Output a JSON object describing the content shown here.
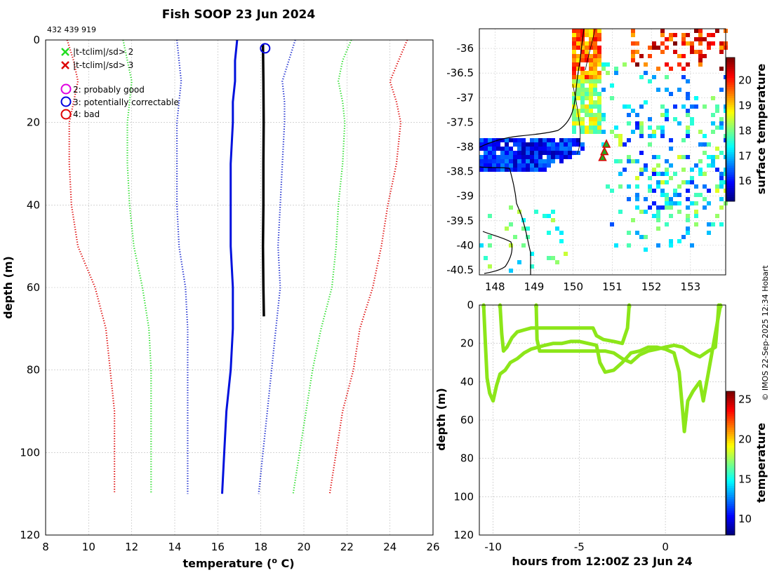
{
  "header": {
    "title": "Fish SOOP 23 Jun 2024",
    "id_label": "432 439 919",
    "watermark": "© IMOS 22-Sep-2025 12:34 Hobart"
  },
  "legend": {
    "clim2": "|t-tclim|/sd> 2",
    "clim3": "|t-tclim|/sd> 3",
    "flag2": "2: probably good",
    "flag3": "3: potentially correctable",
    "flag4": "4: bad"
  },
  "chart_data": [
    {
      "id": "profile",
      "type": "line",
      "xlabel": "temperature (° C)",
      "ylabel": "depth (m)",
      "xlim": [
        8,
        26
      ],
      "ylim": [
        120,
        0
      ],
      "xticks": [
        8,
        10,
        12,
        14,
        16,
        18,
        20,
        22,
        24,
        26
      ],
      "yticks": [
        0,
        20,
        40,
        60,
        80,
        100,
        120
      ],
      "grid": true,
      "series": [
        {
          "name": "clim -3sd",
          "color": "#dd0000",
          "style": "dotted",
          "points": [
            [
              9.0,
              0
            ],
            [
              9.3,
              5
            ],
            [
              9.5,
              10
            ],
            [
              9.3,
              15
            ],
            [
              9.1,
              20
            ],
            [
              9.1,
              30
            ],
            [
              9.2,
              40
            ],
            [
              9.5,
              50
            ],
            [
              10.3,
              60
            ],
            [
              10.8,
              70
            ],
            [
              11.0,
              80
            ],
            [
              11.2,
              90
            ],
            [
              11.2,
              100
            ],
            [
              11.2,
              110
            ]
          ]
        },
        {
          "name": "clim -2sd",
          "color": "#22dd22",
          "style": "dotted",
          "points": [
            [
              11.6,
              0
            ],
            [
              11.8,
              5
            ],
            [
              12.0,
              10
            ],
            [
              11.9,
              15
            ],
            [
              11.8,
              20
            ],
            [
              11.8,
              30
            ],
            [
              11.9,
              40
            ],
            [
              12.1,
              50
            ],
            [
              12.5,
              60
            ],
            [
              12.8,
              70
            ],
            [
              12.9,
              80
            ],
            [
              12.9,
              90
            ],
            [
              12.9,
              100
            ],
            [
              12.9,
              110
            ]
          ]
        },
        {
          "name": "clim -1sd",
          "color": "#1122cc",
          "style": "dotted",
          "points": [
            [
              14.1,
              0
            ],
            [
              14.2,
              5
            ],
            [
              14.3,
              10
            ],
            [
              14.2,
              15
            ],
            [
              14.1,
              20
            ],
            [
              14.1,
              30
            ],
            [
              14.1,
              40
            ],
            [
              14.2,
              50
            ],
            [
              14.5,
              60
            ],
            [
              14.6,
              70
            ],
            [
              14.6,
              80
            ],
            [
              14.6,
              90
            ],
            [
              14.6,
              100
            ],
            [
              14.6,
              110
            ]
          ]
        },
        {
          "name": "clim mean",
          "color": "#0011dd",
          "style": "solid",
          "points": [
            [
              16.9,
              0
            ],
            [
              16.8,
              5
            ],
            [
              16.8,
              10
            ],
            [
              16.7,
              15
            ],
            [
              16.7,
              20
            ],
            [
              16.6,
              30
            ],
            [
              16.6,
              40
            ],
            [
              16.6,
              50
            ],
            [
              16.7,
              60
            ],
            [
              16.7,
              70
            ],
            [
              16.6,
              80
            ],
            [
              16.4,
              90
            ],
            [
              16.3,
              100
            ],
            [
              16.2,
              110
            ]
          ]
        },
        {
          "name": "clim +1sd",
          "color": "#1122cc",
          "style": "dotted",
          "points": [
            [
              19.6,
              0
            ],
            [
              19.3,
              5
            ],
            [
              19.0,
              10
            ],
            [
              19.1,
              15
            ],
            [
              19.1,
              20
            ],
            [
              19.0,
              30
            ],
            [
              18.9,
              40
            ],
            [
              18.8,
              50
            ],
            [
              18.9,
              60
            ],
            [
              18.7,
              70
            ],
            [
              18.5,
              80
            ],
            [
              18.3,
              90
            ],
            [
              18.1,
              100
            ],
            [
              17.9,
              110
            ]
          ]
        },
        {
          "name": "clim +2sd",
          "color": "#22dd22",
          "style": "dotted",
          "points": [
            [
              22.2,
              0
            ],
            [
              21.8,
              5
            ],
            [
              21.6,
              10
            ],
            [
              21.8,
              15
            ],
            [
              21.9,
              20
            ],
            [
              21.8,
              30
            ],
            [
              21.6,
              40
            ],
            [
              21.5,
              50
            ],
            [
              21.3,
              60
            ],
            [
              20.8,
              70
            ],
            [
              20.4,
              80
            ],
            [
              20.1,
              90
            ],
            [
              19.8,
              100
            ],
            [
              19.5,
              110
            ]
          ]
        },
        {
          "name": "clim +3sd",
          "color": "#dd0000",
          "style": "dotted",
          "points": [
            [
              24.8,
              0
            ],
            [
              24.4,
              5
            ],
            [
              24.0,
              10
            ],
            [
              24.3,
              15
            ],
            [
              24.5,
              20
            ],
            [
              24.3,
              30
            ],
            [
              23.9,
              40
            ],
            [
              23.6,
              50
            ],
            [
              23.2,
              60
            ],
            [
              22.6,
              70
            ],
            [
              22.3,
              80
            ],
            [
              21.8,
              90
            ],
            [
              21.5,
              100
            ],
            [
              21.2,
              110
            ]
          ]
        },
        {
          "name": "observed",
          "color": "#000000",
          "style": "solid",
          "points": [
            [
              18.1,
              1
            ],
            [
              18.12,
              10
            ],
            [
              18.13,
              20
            ],
            [
              18.12,
              30
            ],
            [
              18.12,
              40
            ],
            [
              18.1,
              50
            ],
            [
              18.12,
              60
            ],
            [
              18.14,
              67
            ]
          ]
        }
      ],
      "flag_marker": {
        "temperature": 18.2,
        "depth": 1,
        "flag": 3
      }
    },
    {
      "id": "map",
      "type": "heatmap",
      "colorbar_label": "surface temperature",
      "clim": [
        15.2,
        20.9
      ],
      "cticks": [
        16,
        17,
        18,
        19,
        20
      ],
      "lon_ticks": [
        148,
        149,
        150,
        151,
        152,
        153
      ],
      "lat_ticks": [
        -36,
        -36.5,
        -37,
        -37.5,
        -38,
        -38.5,
        -39,
        -39.5,
        -40,
        -40.5
      ],
      "lon_range": [
        147.6,
        153.9
      ],
      "lat_range": [
        -40.6,
        -35.6
      ],
      "track": [
        [
          150.75,
          -38.22
        ],
        [
          150.8,
          -38.1
        ],
        [
          150.85,
          -37.95
        ]
      ]
    },
    {
      "id": "timeseries",
      "type": "scatter",
      "xlabel": "hours from 12:00Z 23 Jun 24",
      "ylabel": "depth (m)",
      "colorbar_label": "temperature",
      "clim": [
        8,
        26
      ],
      "cticks": [
        10,
        15,
        20,
        25
      ],
      "xlim": [
        -10.8,
        3.5
      ],
      "ylim": [
        120,
        0
      ],
      "xticks": [
        -10,
        -5,
        0
      ],
      "yticks": [
        0,
        20,
        40,
        60,
        80,
        100,
        120
      ],
      "series": [
        {
          "name": "dive A",
          "color": "#8ce619",
          "points": [
            [
              -10.55,
              0
            ],
            [
              -10.45,
              20
            ],
            [
              -10.35,
              38
            ],
            [
              -10.2,
              46
            ],
            [
              -10.0,
              50
            ],
            [
              -9.8,
              42
            ],
            [
              -9.6,
              36
            ],
            [
              -9.3,
              34
            ],
            [
              -9.0,
              30
            ],
            [
              -8.6,
              28
            ],
            [
              -8.2,
              25
            ],
            [
              -7.8,
              23
            ],
            [
              -7.4,
              22
            ],
            [
              -7.0,
              21
            ],
            [
              -6.5,
              20
            ],
            [
              -6.0,
              20
            ],
            [
              -5.5,
              19
            ],
            [
              -5.0,
              19
            ],
            [
              -4.5,
              20
            ],
            [
              -4.0,
              21
            ],
            [
              -3.8,
              30
            ],
            [
              -3.5,
              35
            ],
            [
              -3.0,
              34
            ],
            [
              -2.5,
              30
            ],
            [
              -2.0,
              25
            ],
            [
              -1.5,
              24
            ],
            [
              -1.0,
              22
            ],
            [
              -0.5,
              22
            ],
            [
              0.0,
              23
            ],
            [
              0.5,
              25
            ],
            [
              0.8,
              35
            ],
            [
              1.0,
              55
            ],
            [
              1.1,
              66
            ],
            [
              1.3,
              50
            ],
            [
              1.6,
              45
            ],
            [
              2.0,
              40
            ],
            [
              2.2,
              50
            ],
            [
              2.5,
              35
            ],
            [
              2.8,
              20
            ],
            [
              3.0,
              10
            ],
            [
              3.2,
              0
            ]
          ]
        },
        {
          "name": "dive B",
          "color": "#8ce619",
          "points": [
            [
              -9.6,
              0
            ],
            [
              -9.5,
              15
            ],
            [
              -9.4,
              24
            ],
            [
              -9.2,
              22
            ],
            [
              -8.9,
              17
            ],
            [
              -8.6,
              14
            ],
            [
              -8.2,
              13
            ],
            [
              -7.8,
              12
            ],
            [
              -7.0,
              12
            ],
            [
              -6.0,
              12
            ],
            [
              -5.0,
              12
            ],
            [
              -4.2,
              12
            ],
            [
              -4.0,
              16
            ],
            [
              -3.6,
              18
            ],
            [
              -3.0,
              19
            ],
            [
              -2.5,
              20
            ],
            [
              -2.2,
              12
            ],
            [
              -2.1,
              0
            ]
          ]
        },
        {
          "name": "dive C",
          "color": "#8ce619",
          "points": [
            [
              -7.5,
              0
            ],
            [
              -7.45,
              18
            ],
            [
              -7.3,
              24
            ],
            [
              -6.5,
              24
            ],
            [
              -5.5,
              24
            ],
            [
              -4.5,
              24
            ],
            [
              -3.5,
              24
            ],
            [
              -3.0,
              25
            ],
            [
              -2.5,
              28
            ],
            [
              -2.0,
              30
            ],
            [
              -1.5,
              26
            ],
            [
              -1.0,
              24
            ],
            [
              -0.5,
              23
            ],
            [
              0.0,
              22
            ],
            [
              0.5,
              21
            ],
            [
              1.0,
              22
            ],
            [
              1.5,
              25
            ],
            [
              2.0,
              27
            ],
            [
              2.5,
              24
            ],
            [
              2.9,
              22
            ],
            [
              3.0,
              12
            ],
            [
              3.1,
              0
            ]
          ]
        }
      ]
    }
  ]
}
